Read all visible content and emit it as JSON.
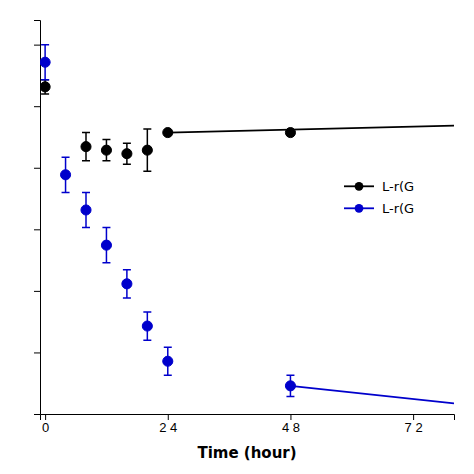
{
  "chart_data": {
    "type": "scatter",
    "xlabel": "Time (hour)",
    "xlim": [
      -1,
      80
    ],
    "ylim": [
      0,
      112
    ],
    "xticks": [
      0,
      {
        "value": 24,
        "label": "2 4"
      },
      {
        "value": 48,
        "label": "4 8"
      },
      {
        "value": 72,
        "label": "7 2"
      }
    ],
    "yticks": [
      0,
      17.5,
      35,
      52.5,
      70,
      87.5,
      105
    ],
    "tick_labels": "x",
    "grid": false,
    "legend": "right",
    "series": [
      {
        "name": "L-r(G",
        "color": "#000000",
        "type": "scatter",
        "marker": "circle",
        "x": [
          0,
          8,
          12,
          16,
          20,
          24,
          48
        ],
        "values": [
          93,
          76,
          75,
          74,
          75,
          80,
          80
        ],
        "errors": [
          2,
          4,
          3,
          3,
          6,
          0,
          0
        ]
      },
      {
        "color": "#000000",
        "type": "line",
        "x": [
          24,
          80
        ],
        "values": [
          80,
          82
        ]
      },
      {
        "name": "L-r(G",
        "color": "#0000cc",
        "type": "scatter",
        "marker": "circle",
        "x": [
          0,
          4,
          8,
          12,
          16,
          20,
          24,
          48
        ],
        "values": [
          100,
          68,
          58,
          48,
          37,
          25,
          15,
          8
        ],
        "errors": [
          5,
          5,
          5,
          5,
          4,
          4,
          4,
          3
        ]
      },
      {
        "color": "#0000cc",
        "type": "line",
        "x": [
          48,
          80
        ],
        "values": [
          8,
          3
        ]
      }
    ]
  }
}
